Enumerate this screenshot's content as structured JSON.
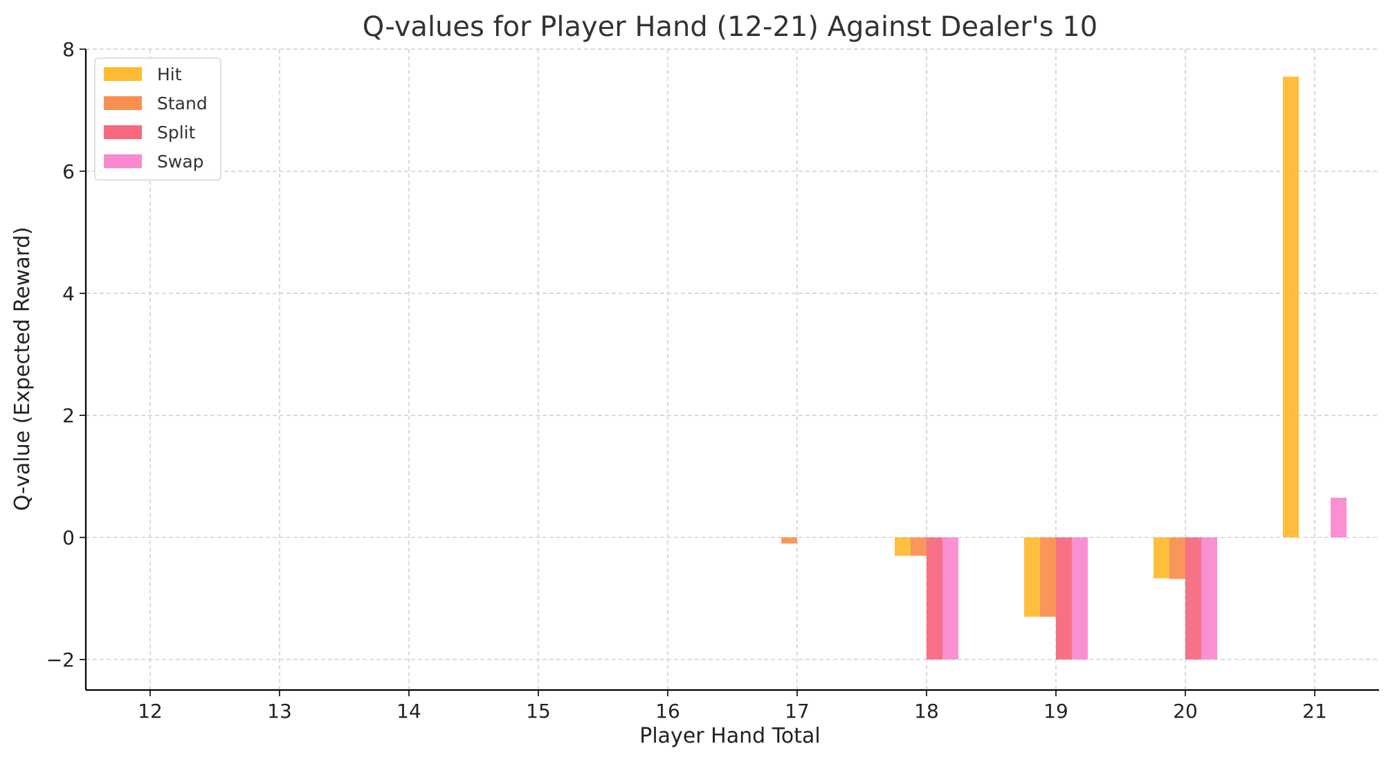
{
  "chart_data": {
    "type": "bar",
    "title": "Q-values for Player Hand (12-21) Against Dealer's 10",
    "xlabel": "Player Hand Total",
    "ylabel": "Q-value (Expected Reward)",
    "categories": [
      "12",
      "13",
      "14",
      "15",
      "16",
      "17",
      "18",
      "19",
      "20",
      "21"
    ],
    "ylim": [
      -2.5,
      8
    ],
    "yticks": [
      -2,
      0,
      2,
      4,
      6,
      8
    ],
    "ytick_labels": [
      "−2",
      "0",
      "2",
      "4",
      "6",
      "8"
    ],
    "grid": true,
    "legend_position": "top-left",
    "series": [
      {
        "name": "Hit",
        "color": "#FFBC33",
        "values": [
          0,
          0,
          0,
          0,
          0,
          0,
          -0.3,
          -1.3,
          -0.67,
          7.55
        ]
      },
      {
        "name": "Stand",
        "color": "#FA9050",
        "values": [
          0,
          0,
          0,
          0,
          0,
          -0.1,
          -0.3,
          -1.3,
          -0.68,
          0
        ]
      },
      {
        "name": "Split",
        "color": "#F7697F",
        "values": [
          0,
          0,
          0,
          0,
          0,
          0,
          -2,
          -2,
          -2,
          0
        ]
      },
      {
        "name": "Swap",
        "color": "#F98AD0",
        "values": [
          0,
          0,
          0,
          0,
          0,
          0,
          -2,
          -2,
          -2,
          0.65
        ]
      }
    ]
  }
}
